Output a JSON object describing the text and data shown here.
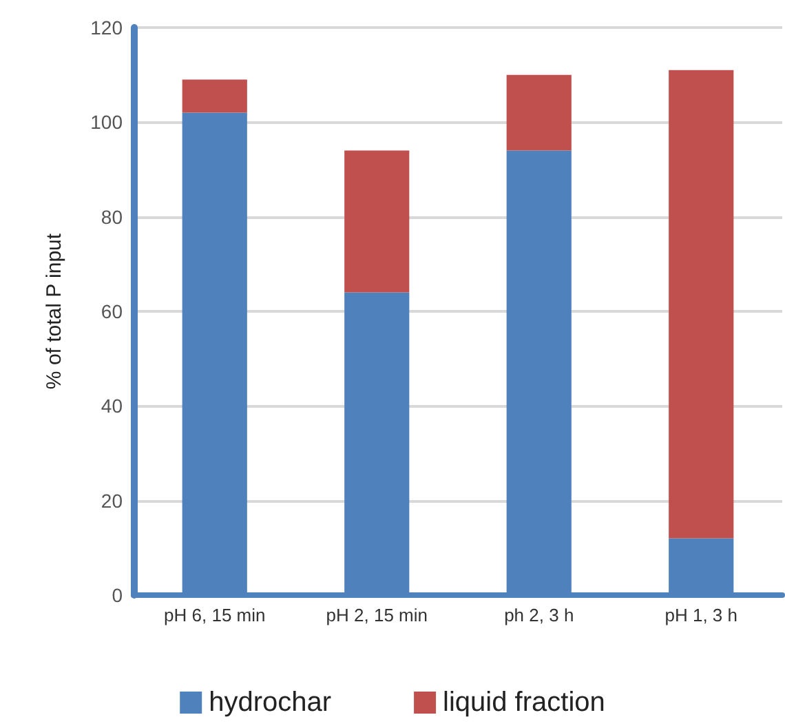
{
  "chart_data": {
    "type": "bar",
    "stacked": true,
    "ylabel": "% of total P input",
    "categories": [
      "pH 6, 15 min",
      "pH 2, 15 min",
      "ph 2, 3 h",
      "pH 1, 3 h"
    ],
    "series": [
      {
        "name": "hydrochar",
        "color": "#4f81bd",
        "values": [
          102,
          64,
          94,
          12
        ]
      },
      {
        "name": "liquid fraction",
        "color": "#c0504d",
        "values": [
          7,
          30,
          16,
          99
        ]
      }
    ],
    "ylim": [
      0,
      120
    ],
    "yticks": [
      0,
      20,
      40,
      60,
      80,
      100,
      120
    ],
    "grid": "y",
    "legend": "bottom"
  }
}
